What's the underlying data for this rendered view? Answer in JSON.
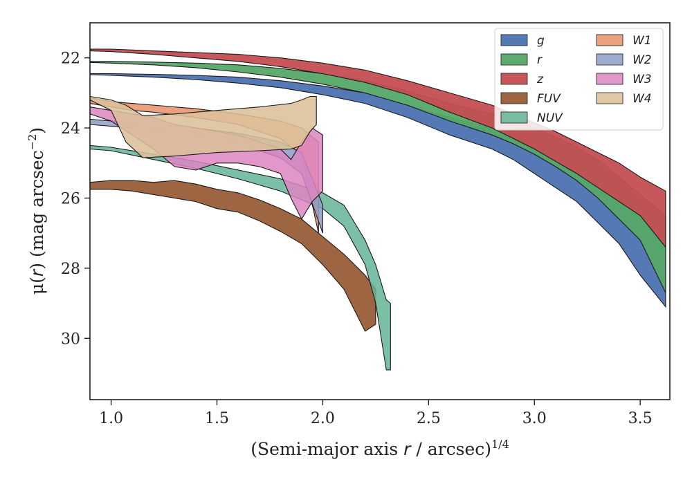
{
  "chart_data": {
    "type": "area",
    "title": "",
    "xlabel_parts": [
      "(Semi-major axis ",
      "r",
      " / arcsec)",
      "1/4"
    ],
    "ylabel_parts": [
      "μ(",
      "r",
      ") (mag arcsec",
      "−2",
      ")"
    ],
    "xlim": [
      0.9,
      3.64
    ],
    "ylim": [
      31.75,
      21.0
    ],
    "x_ticks": [
      1.0,
      1.5,
      2.0,
      2.5,
      3.0,
      3.5
    ],
    "x_tick_labels": [
      "1.0",
      "1.5",
      "2.0",
      "2.5",
      "3.0",
      "3.5"
    ],
    "y_ticks": [
      22,
      24,
      26,
      28,
      30
    ],
    "y_tick_labels": [
      "22",
      "24",
      "26",
      "28",
      "30"
    ],
    "grid": false,
    "legend_position": "top-right",
    "legend_columns": 2,
    "series": [
      {
        "name": "g",
        "color": "#4c72b0",
        "alpha": 0.95,
        "x": [
          0.9,
          1.0,
          1.2,
          1.4,
          1.6,
          1.8,
          2.0,
          2.2,
          2.4,
          2.6,
          2.8,
          2.9,
          3.0,
          3.1,
          3.2,
          3.3,
          3.4,
          3.5,
          3.62
        ],
        "bright": [
          22.45,
          22.45,
          22.47,
          22.5,
          22.55,
          22.65,
          22.8,
          23.0,
          23.35,
          23.7,
          24.0,
          24.1,
          24.3,
          24.6,
          24.8,
          25.3,
          25.7,
          26.2,
          27.0
        ],
        "faint": [
          22.48,
          22.5,
          22.55,
          22.62,
          22.72,
          22.85,
          23.05,
          23.3,
          23.7,
          24.2,
          24.6,
          24.9,
          25.3,
          25.7,
          26.1,
          26.7,
          27.3,
          28.2,
          29.1
        ]
      },
      {
        "name": "r",
        "color": "#55a868",
        "alpha": 0.95,
        "x": [
          0.9,
          1.0,
          1.2,
          1.4,
          1.6,
          1.8,
          2.0,
          2.2,
          2.4,
          2.6,
          2.8,
          2.9,
          3.0,
          3.1,
          3.2,
          3.3,
          3.4,
          3.5,
          3.62
        ],
        "bright": [
          22.1,
          22.1,
          22.12,
          22.15,
          22.2,
          22.3,
          22.45,
          22.65,
          22.95,
          23.3,
          23.6,
          23.75,
          24.0,
          24.25,
          24.55,
          24.9,
          25.4,
          25.9,
          26.5
        ],
        "faint": [
          22.13,
          22.15,
          22.2,
          22.28,
          22.4,
          22.55,
          22.75,
          23.0,
          23.35,
          23.8,
          24.2,
          24.45,
          24.75,
          25.1,
          25.5,
          26.0,
          26.6,
          27.2,
          28.7
        ]
      },
      {
        "name": "z",
        "color": "#c44e52",
        "alpha": 0.95,
        "x": [
          0.9,
          1.0,
          1.2,
          1.4,
          1.6,
          1.8,
          2.0,
          2.2,
          2.4,
          2.6,
          2.8,
          2.9,
          3.0,
          3.1,
          3.2,
          3.3,
          3.4,
          3.5,
          3.62
        ],
        "bright": [
          21.75,
          21.75,
          21.8,
          21.85,
          21.9,
          22.0,
          22.15,
          22.35,
          22.65,
          23.0,
          23.35,
          23.6,
          23.85,
          24.1,
          24.4,
          24.7,
          25.0,
          25.4,
          25.8
        ],
        "faint": [
          21.8,
          21.82,
          21.9,
          22.0,
          22.1,
          22.25,
          22.45,
          22.7,
          23.05,
          23.55,
          24.0,
          24.3,
          24.6,
          24.95,
          25.3,
          25.7,
          26.1,
          26.5,
          27.4
        ]
      },
      {
        "name": "FUV",
        "color": "#8c4a20",
        "alpha": 0.85,
        "x": [
          0.9,
          1.0,
          1.1,
          1.2,
          1.3,
          1.4,
          1.5,
          1.6,
          1.7,
          1.8,
          1.9,
          2.0,
          2.1,
          2.2,
          2.25
        ],
        "bright": [
          25.55,
          25.5,
          25.5,
          25.55,
          25.5,
          25.6,
          25.75,
          25.85,
          26.05,
          26.3,
          26.6,
          27.1,
          27.6,
          28.2,
          28.6
        ],
        "faint": [
          25.75,
          25.75,
          25.8,
          25.9,
          26.0,
          26.1,
          26.3,
          26.4,
          26.65,
          26.95,
          27.3,
          27.9,
          28.6,
          29.8,
          29.6
        ]
      },
      {
        "name": "NUV",
        "color": "#64b496",
        "alpha": 0.85,
        "x": [
          0.9,
          1.0,
          1.2,
          1.4,
          1.6,
          1.8,
          2.0,
          2.1,
          2.2,
          2.25,
          2.3,
          2.32
        ],
        "bright": [
          24.5,
          24.55,
          24.75,
          24.95,
          25.2,
          25.45,
          25.85,
          26.2,
          27.2,
          27.9,
          28.9,
          29.0
        ],
        "faint": [
          24.6,
          24.65,
          24.9,
          25.15,
          25.45,
          25.8,
          26.3,
          26.8,
          27.9,
          29.0,
          30.9,
          30.9
        ]
      },
      {
        "name": "W1",
        "color": "#e8916a",
        "alpha": 0.85,
        "x": [
          0.9,
          1.0,
          1.1,
          1.2,
          1.4,
          1.6,
          1.8,
          1.9,
          1.98
        ],
        "bright": [
          23.15,
          23.25,
          23.3,
          23.35,
          23.45,
          23.6,
          23.8,
          24.0,
          24.4
        ],
        "faint": [
          23.3,
          23.4,
          23.5,
          23.55,
          23.7,
          23.9,
          24.3,
          24.8,
          27.0
        ]
      },
      {
        "name": "W2",
        "color": "#8e9cc4",
        "alpha": 0.85,
        "x": [
          0.9,
          1.0,
          1.1,
          1.2,
          1.4,
          1.6,
          1.8,
          1.9,
          2.0
        ],
        "bright": [
          23.75,
          23.8,
          23.85,
          23.9,
          24.0,
          24.15,
          24.4,
          24.7,
          26.2
        ],
        "faint": [
          23.9,
          23.95,
          24.0,
          24.1,
          24.25,
          24.45,
          24.85,
          25.3,
          27.0
        ]
      },
      {
        "name": "W3",
        "color": "#dd85c2",
        "alpha": 0.85,
        "x": [
          0.9,
          1.0,
          1.1,
          1.2,
          1.3,
          1.4,
          1.5,
          1.6,
          1.7,
          1.8,
          1.85,
          1.9,
          1.95,
          2.0
        ],
        "bright": [
          23.4,
          23.5,
          23.6,
          23.7,
          23.9,
          24.0,
          24.1,
          24.2,
          24.4,
          24.6,
          24.9,
          24.4,
          24.0,
          24.2
        ],
        "faint": [
          23.6,
          23.8,
          24.2,
          24.6,
          25.1,
          25.2,
          25.0,
          25.0,
          25.1,
          25.3,
          26.0,
          26.6,
          26.1,
          25.8
        ]
      },
      {
        "name": "W4",
        "color": "#dcc09a",
        "alpha": 0.88,
        "x": [
          0.9,
          1.0,
          1.07,
          1.15,
          1.3,
          1.5,
          1.7,
          1.85,
          1.9,
          1.94,
          1.97
        ],
        "bright": [
          23.1,
          23.2,
          23.35,
          23.65,
          23.6,
          23.5,
          23.4,
          23.3,
          23.2,
          23.1,
          23.1
        ],
        "faint": [
          23.2,
          23.5,
          24.4,
          24.85,
          24.8,
          24.7,
          24.65,
          24.6,
          24.5,
          24.1,
          23.9
        ]
      }
    ]
  }
}
